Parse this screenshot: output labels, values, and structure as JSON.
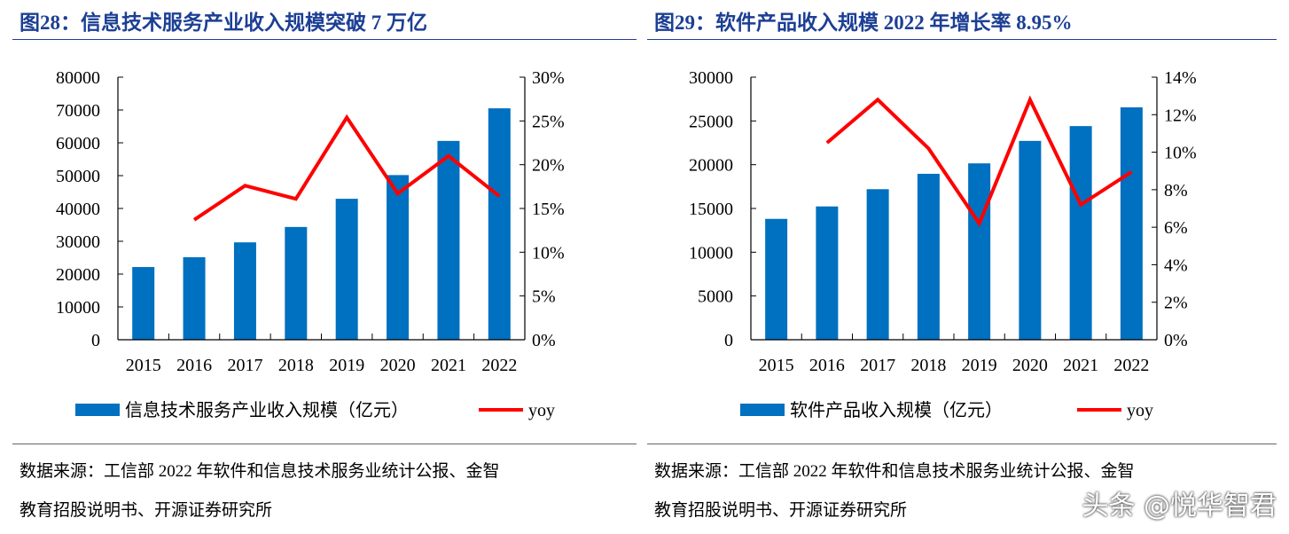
{
  "charts_meta": [
    {
      "title": "图28：信息技术服务产业收入规模突破 7 万亿",
      "source_line1": "数据来源：工信部 2022 年软件和信息技术服务业统计公报、金智",
      "source_line2": "教育招股说明书、开源证券研究所"
    },
    {
      "title": "图29：软件产品收入规模 2022 年增长率 8.95%",
      "source_line1": "数据来源：工信部 2022 年软件和信息技术服务业统计公报、金智",
      "source_line2": "教育招股说明书、开源证券研究所"
    }
  ],
  "watermark": "头条 @悦华智君",
  "colors": {
    "bar": "#0070c0",
    "line": "#ff0000",
    "title": "#1c3f94"
  },
  "chart_data": [
    {
      "type": "bar+line",
      "categories": [
        "2015",
        "2016",
        "2017",
        "2018",
        "2019",
        "2020",
        "2021",
        "2022"
      ],
      "series": [
        {
          "name": "信息技术服务产业收入规模（亿元）",
          "type": "bar",
          "axis": "left",
          "values": [
            22150,
            25140,
            29670,
            34360,
            42950,
            50170,
            60580,
            70510
          ]
        },
        {
          "name": "yoy",
          "type": "line",
          "axis": "right",
          "values": [
            null,
            13.7,
            17.6,
            16.1,
            25.4,
            16.7,
            21.0,
            16.4
          ]
        }
      ],
      "ylim": [
        0,
        80000
      ],
      "yticks": [
        "0",
        "10000",
        "20000",
        "30000",
        "40000",
        "50000",
        "60000",
        "70000",
        "80000"
      ],
      "y2lim": [
        0,
        30
      ],
      "y2ticks": [
        "0%",
        "5%",
        "10%",
        "15%",
        "20%",
        "25%",
        "30%"
      ],
      "legend": "bottom",
      "grid": false
    },
    {
      "type": "bar+line",
      "categories": [
        "2015",
        "2016",
        "2017",
        "2018",
        "2019",
        "2020",
        "2021",
        "2022"
      ],
      "series": [
        {
          "name": "软件产品收入规模（亿元）",
          "type": "bar",
          "axis": "left",
          "values": [
            13810,
            15230,
            17200,
            18960,
            20150,
            22720,
            24410,
            26550
          ]
        },
        {
          "name": "yoy",
          "type": "line",
          "axis": "right",
          "values": [
            null,
            10.5,
            12.8,
            10.2,
            6.2,
            12.8,
            7.2,
            8.95
          ]
        }
      ],
      "ylim": [
        0,
        30000
      ],
      "yticks": [
        "0",
        "5000",
        "10000",
        "15000",
        "20000",
        "25000",
        "30000"
      ],
      "y2lim": [
        0,
        14
      ],
      "y2ticks": [
        "0%",
        "2%",
        "4%",
        "6%",
        "8%",
        "10%",
        "12%",
        "14%"
      ],
      "legend": "bottom",
      "grid": false
    }
  ]
}
